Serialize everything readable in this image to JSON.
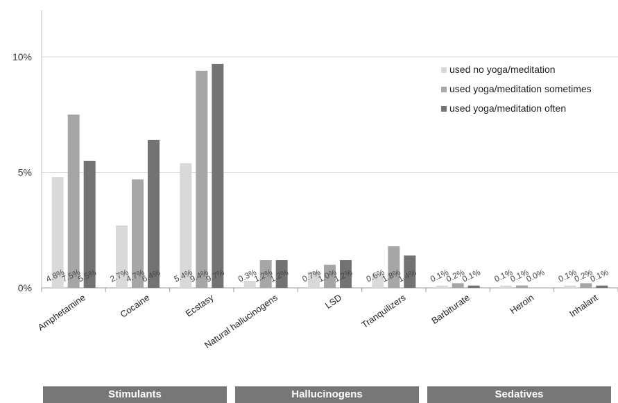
{
  "chart_data": {
    "type": "bar",
    "categories": [
      "Amphetamine",
      "Cocaine",
      "Ecstasy",
      "Natural hallucinogens",
      "LSD",
      "Tranquilizers",
      "Barbiturate",
      "Heroin",
      "Inhalant"
    ],
    "series": [
      {
        "name": "used no yoga/meditation",
        "color": "#d9d9d9",
        "values": [
          4.8,
          2.7,
          5.4,
          0.3,
          0.7,
          0.6,
          0.1,
          0.1,
          0.1
        ]
      },
      {
        "name": "used yoga/meditation sometimes",
        "color": "#a6a6a6",
        "values": [
          7.5,
          4.7,
          9.4,
          1.2,
          1.0,
          1.8,
          0.2,
          0.1,
          0.2
        ]
      },
      {
        "name": "used yoga/meditation often",
        "color": "#737373",
        "values": [
          5.5,
          6.4,
          9.7,
          1.2,
          1.2,
          1.4,
          0.1,
          0.0,
          0.1
        ]
      }
    ],
    "ylim": [
      0,
      12
    ],
    "yticks": [
      0,
      5,
      10
    ],
    "ytick_labels": [
      "0%",
      "5%",
      "10%"
    ],
    "value_suffix": "%",
    "grid": true,
    "legend_position": "top-right",
    "groups": [
      {
        "label": "Stimulants",
        "from": 0,
        "to": 2
      },
      {
        "label": "Hallucinogens",
        "from": 3,
        "to": 5
      },
      {
        "label": "Sedatives",
        "from": 6,
        "to": 8
      }
    ]
  }
}
